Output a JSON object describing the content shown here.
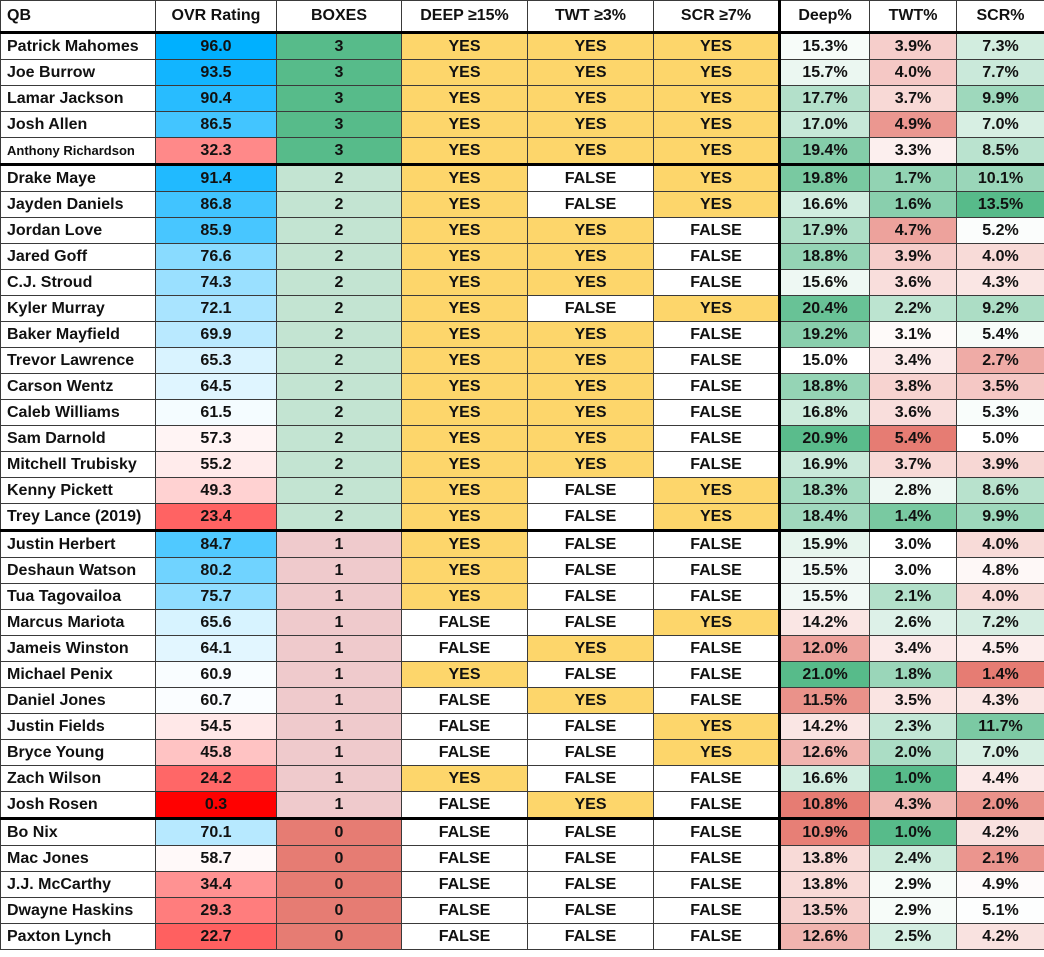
{
  "colors": {
    "yes": "#fdd66b",
    "false": "#ffffff",
    "boxes3": "#57bb8a",
    "boxes2": "#c3e4d2",
    "boxes1": "#efcacc",
    "boxes0": "#e67c73",
    "ovr_high": "#00b0ff",
    "ovr_mid": "#ffffff",
    "ovr_low": "#ff0000",
    "pct_good": "#57bb8a",
    "pct_mid": "#ffffff",
    "pct_bad": "#e67c73"
  },
  "headers": {
    "qb": "QB",
    "ovr": "OVR Rating",
    "boxes": "BOXES",
    "deep": "DEEP ≥15%",
    "twt": "TWT ≥3%",
    "scr": "SCR ≥7%",
    "deep_pct": "Deep%",
    "twt_pct": "TWT%",
    "scr_pct": "SCR%"
  },
  "groups": [
    {
      "rows": [
        {
          "qb": "Patrick Mahomes",
          "ovr": "96.0",
          "boxes": "3",
          "deep": "YES",
          "twt": "YES",
          "scr": "YES",
          "deep_pct": "15.3%",
          "twt_pct": "3.9%",
          "scr_pct": "7.3%"
        },
        {
          "qb": "Joe Burrow",
          "ovr": "93.5",
          "boxes": "3",
          "deep": "YES",
          "twt": "YES",
          "scr": "YES",
          "deep_pct": "15.7%",
          "twt_pct": "4.0%",
          "scr_pct": "7.7%"
        },
        {
          "qb": "Lamar Jackson",
          "ovr": "90.4",
          "boxes": "3",
          "deep": "YES",
          "twt": "YES",
          "scr": "YES",
          "deep_pct": "17.7%",
          "twt_pct": "3.7%",
          "scr_pct": "9.9%"
        },
        {
          "qb": "Josh Allen",
          "ovr": "86.5",
          "boxes": "3",
          "deep": "YES",
          "twt": "YES",
          "scr": "YES",
          "deep_pct": "17.0%",
          "twt_pct": "4.9%",
          "scr_pct": "7.0%"
        },
        {
          "qb": "Anthony Richardson",
          "ovr": "32.3",
          "boxes": "3",
          "deep": "YES",
          "twt": "YES",
          "scr": "YES",
          "deep_pct": "19.4%",
          "twt_pct": "3.3%",
          "scr_pct": "8.5%"
        }
      ]
    },
    {
      "rows": [
        {
          "qb": "Drake Maye",
          "ovr": "91.4",
          "boxes": "2",
          "deep": "YES",
          "twt": "FALSE",
          "scr": "YES",
          "deep_pct": "19.8%",
          "twt_pct": "1.7%",
          "scr_pct": "10.1%"
        },
        {
          "qb": "Jayden Daniels",
          "ovr": "86.8",
          "boxes": "2",
          "deep": "YES",
          "twt": "FALSE",
          "scr": "YES",
          "deep_pct": "16.6%",
          "twt_pct": "1.6%",
          "scr_pct": "13.5%"
        },
        {
          "qb": "Jordan Love",
          "ovr": "85.9",
          "boxes": "2",
          "deep": "YES",
          "twt": "YES",
          "scr": "FALSE",
          "deep_pct": "17.9%",
          "twt_pct": "4.7%",
          "scr_pct": "5.2%"
        },
        {
          "qb": "Jared Goff",
          "ovr": "76.6",
          "boxes": "2",
          "deep": "YES",
          "twt": "YES",
          "scr": "FALSE",
          "deep_pct": "18.8%",
          "twt_pct": "3.9%",
          "scr_pct": "4.0%"
        },
        {
          "qb": "C.J. Stroud",
          "ovr": "74.3",
          "boxes": "2",
          "deep": "YES",
          "twt": "YES",
          "scr": "FALSE",
          "deep_pct": "15.6%",
          "twt_pct": "3.6%",
          "scr_pct": "4.3%"
        },
        {
          "qb": "Kyler Murray",
          "ovr": "72.1",
          "boxes": "2",
          "deep": "YES",
          "twt": "FALSE",
          "scr": "YES",
          "deep_pct": "20.4%",
          "twt_pct": "2.2%",
          "scr_pct": "9.2%"
        },
        {
          "qb": "Baker Mayfield",
          "ovr": "69.9",
          "boxes": "2",
          "deep": "YES",
          "twt": "YES",
          "scr": "FALSE",
          "deep_pct": "19.2%",
          "twt_pct": "3.1%",
          "scr_pct": "5.4%"
        },
        {
          "qb": "Trevor Lawrence",
          "ovr": "65.3",
          "boxes": "2",
          "deep": "YES",
          "twt": "YES",
          "scr": "FALSE",
          "deep_pct": "15.0%",
          "twt_pct": "3.4%",
          "scr_pct": "2.7%"
        },
        {
          "qb": "Carson Wentz",
          "ovr": "64.5",
          "boxes": "2",
          "deep": "YES",
          "twt": "YES",
          "scr": "FALSE",
          "deep_pct": "18.8%",
          "twt_pct": "3.8%",
          "scr_pct": "3.5%"
        },
        {
          "qb": "Caleb Williams",
          "ovr": "61.5",
          "boxes": "2",
          "deep": "YES",
          "twt": "YES",
          "scr": "FALSE",
          "deep_pct": "16.8%",
          "twt_pct": "3.6%",
          "scr_pct": "5.3%"
        },
        {
          "qb": "Sam Darnold",
          "ovr": "57.3",
          "boxes": "2",
          "deep": "YES",
          "twt": "YES",
          "scr": "FALSE",
          "deep_pct": "20.9%",
          "twt_pct": "5.4%",
          "scr_pct": "5.0%"
        },
        {
          "qb": "Mitchell Trubisky",
          "ovr": "55.2",
          "boxes": "2",
          "deep": "YES",
          "twt": "YES",
          "scr": "FALSE",
          "deep_pct": "16.9%",
          "twt_pct": "3.7%",
          "scr_pct": "3.9%"
        },
        {
          "qb": "Kenny Pickett",
          "ovr": "49.3",
          "boxes": "2",
          "deep": "YES",
          "twt": "FALSE",
          "scr": "YES",
          "deep_pct": "18.3%",
          "twt_pct": "2.8%",
          "scr_pct": "8.6%"
        },
        {
          "qb": "Trey Lance (2019)",
          "ovr": "23.4",
          "boxes": "2",
          "deep": "YES",
          "twt": "FALSE",
          "scr": "YES",
          "deep_pct": "18.4%",
          "twt_pct": "1.4%",
          "scr_pct": "9.9%"
        }
      ]
    },
    {
      "rows": [
        {
          "qb": "Justin Herbert",
          "ovr": "84.7",
          "boxes": "1",
          "deep": "YES",
          "twt": "FALSE",
          "scr": "FALSE",
          "deep_pct": "15.9%",
          "twt_pct": "3.0%",
          "scr_pct": "4.0%"
        },
        {
          "qb": "Deshaun Watson",
          "ovr": "80.2",
          "boxes": "1",
          "deep": "YES",
          "twt": "FALSE",
          "scr": "FALSE",
          "deep_pct": "15.5%",
          "twt_pct": "3.0%",
          "scr_pct": "4.8%"
        },
        {
          "qb": "Tua Tagovailoa",
          "ovr": "75.7",
          "boxes": "1",
          "deep": "YES",
          "twt": "FALSE",
          "scr": "FALSE",
          "deep_pct": "15.5%",
          "twt_pct": "2.1%",
          "scr_pct": "4.0%"
        },
        {
          "qb": "Marcus Mariota",
          "ovr": "65.6",
          "boxes": "1",
          "deep": "FALSE",
          "twt": "FALSE",
          "scr": "YES",
          "deep_pct": "14.2%",
          "twt_pct": "2.6%",
          "scr_pct": "7.2%"
        },
        {
          "qb": "Jameis Winston",
          "ovr": "64.1",
          "boxes": "1",
          "deep": "FALSE",
          "twt": "YES",
          "scr": "FALSE",
          "deep_pct": "12.0%",
          "twt_pct": "3.4%",
          "scr_pct": "4.5%"
        },
        {
          "qb": "Michael Penix",
          "ovr": "60.9",
          "boxes": "1",
          "deep": "YES",
          "twt": "FALSE",
          "scr": "FALSE",
          "deep_pct": "21.0%",
          "twt_pct": "1.8%",
          "scr_pct": "1.4%"
        },
        {
          "qb": "Daniel Jones",
          "ovr": "60.7",
          "boxes": "1",
          "deep": "FALSE",
          "twt": "YES",
          "scr": "FALSE",
          "deep_pct": "11.5%",
          "twt_pct": "3.5%",
          "scr_pct": "4.3%"
        },
        {
          "qb": "Justin Fields",
          "ovr": "54.5",
          "boxes": "1",
          "deep": "FALSE",
          "twt": "FALSE",
          "scr": "YES",
          "deep_pct": "14.2%",
          "twt_pct": "2.3%",
          "scr_pct": "11.7%"
        },
        {
          "qb": "Bryce Young",
          "ovr": "45.8",
          "boxes": "1",
          "deep": "FALSE",
          "twt": "FALSE",
          "scr": "YES",
          "deep_pct": "12.6%",
          "twt_pct": "2.0%",
          "scr_pct": "7.0%"
        },
        {
          "qb": "Zach Wilson",
          "ovr": "24.2",
          "boxes": "1",
          "deep": "YES",
          "twt": "FALSE",
          "scr": "FALSE",
          "deep_pct": "16.6%",
          "twt_pct": "1.0%",
          "scr_pct": "4.4%"
        },
        {
          "qb": "Josh Rosen",
          "ovr": "0.3",
          "boxes": "1",
          "deep": "FALSE",
          "twt": "YES",
          "scr": "FALSE",
          "deep_pct": "10.8%",
          "twt_pct": "4.3%",
          "scr_pct": "2.0%"
        }
      ]
    },
    {
      "rows": [
        {
          "qb": "Bo Nix",
          "ovr": "70.1",
          "boxes": "0",
          "deep": "FALSE",
          "twt": "FALSE",
          "scr": "FALSE",
          "deep_pct": "10.9%",
          "twt_pct": "1.0%",
          "scr_pct": "4.2%"
        },
        {
          "qb": "Mac Jones",
          "ovr": "58.7",
          "boxes": "0",
          "deep": "FALSE",
          "twt": "FALSE",
          "scr": "FALSE",
          "deep_pct": "13.8%",
          "twt_pct": "2.4%",
          "scr_pct": "2.1%"
        },
        {
          "qb": "J.J. McCarthy",
          "ovr": "34.4",
          "boxes": "0",
          "deep": "FALSE",
          "twt": "FALSE",
          "scr": "FALSE",
          "deep_pct": "13.8%",
          "twt_pct": "2.9%",
          "scr_pct": "4.9%"
        },
        {
          "qb": "Dwayne Haskins",
          "ovr": "29.3",
          "boxes": "0",
          "deep": "FALSE",
          "twt": "FALSE",
          "scr": "FALSE",
          "deep_pct": "13.5%",
          "twt_pct": "2.9%",
          "scr_pct": "5.1%"
        },
        {
          "qb": "Paxton Lynch",
          "ovr": "22.7",
          "boxes": "0",
          "deep": "FALSE",
          "twt": "FALSE",
          "scr": "FALSE",
          "deep_pct": "12.6%",
          "twt_pct": "2.5%",
          "scr_pct": "4.2%"
        }
      ]
    }
  ]
}
